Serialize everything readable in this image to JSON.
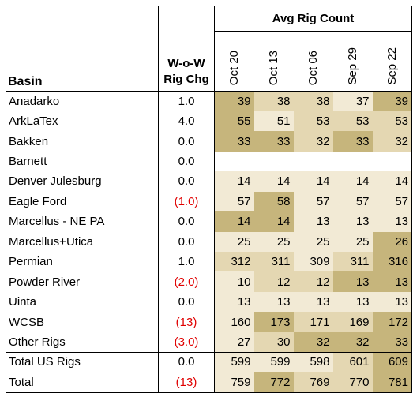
{
  "header": {
    "group_title": "Avg Rig Count",
    "basin": "Basin",
    "wow_line1": "W-o-W",
    "wow_line2": "Rig Chg",
    "months": [
      "Oct 20",
      "Oct 13",
      "Oct 06",
      "Sep 29",
      "Sep 22"
    ]
  },
  "rows": [
    {
      "basin": "Anadarko",
      "wow": "1.0",
      "neg": false,
      "values": [
        "39",
        "38",
        "38",
        "37",
        "39"
      ],
      "shade": [
        4,
        3,
        3,
        2,
        4
      ]
    },
    {
      "basin": "ArkLaTex",
      "wow": "4.0",
      "neg": false,
      "values": [
        "55",
        "51",
        "53",
        "53",
        "53"
      ],
      "shade": [
        4,
        2,
        3,
        3,
        3
      ]
    },
    {
      "basin": "Bakken",
      "wow": "0.0",
      "neg": false,
      "values": [
        "33",
        "33",
        "32",
        "33",
        "32"
      ],
      "shade": [
        4,
        4,
        3,
        4,
        3
      ]
    },
    {
      "basin": "Barnett",
      "wow": "0.0",
      "neg": false,
      "values": [
        "",
        "",
        "",
        "",
        ""
      ],
      "shade": [
        1,
        1,
        1,
        1,
        1
      ]
    },
    {
      "basin": "Denver Julesburg",
      "wow": "0.0",
      "neg": false,
      "values": [
        "14",
        "14",
        "14",
        "14",
        "14"
      ],
      "shade": [
        2,
        2,
        2,
        2,
        2
      ]
    },
    {
      "basin": "Eagle Ford",
      "wow": "(1.0)",
      "neg": true,
      "values": [
        "57",
        "58",
        "57",
        "57",
        "57"
      ],
      "shade": [
        2,
        4,
        2,
        2,
        2
      ]
    },
    {
      "basin": "Marcellus - NE PA",
      "wow": "0.0",
      "neg": false,
      "values": [
        "14",
        "14",
        "13",
        "13",
        "13"
      ],
      "shade": [
        4,
        4,
        2,
        2,
        2
      ]
    },
    {
      "basin": "Marcellus+Utica",
      "wow": "0.0",
      "neg": false,
      "values": [
        "25",
        "25",
        "25",
        "25",
        "26"
      ],
      "shade": [
        2,
        2,
        2,
        2,
        4
      ]
    },
    {
      "basin": "Permian",
      "wow": "1.0",
      "neg": false,
      "values": [
        "312",
        "311",
        "309",
        "311",
        "316"
      ],
      "shade": [
        3,
        3,
        2,
        3,
        4
      ]
    },
    {
      "basin": "Powder River",
      "wow": "(2.0)",
      "neg": true,
      "values": [
        "10",
        "12",
        "12",
        "13",
        "13"
      ],
      "shade": [
        2,
        3,
        3,
        4,
        4
      ]
    },
    {
      "basin": "Uinta",
      "wow": "0.0",
      "neg": false,
      "values": [
        "13",
        "13",
        "13",
        "13",
        "13"
      ],
      "shade": [
        2,
        2,
        2,
        2,
        2
      ]
    },
    {
      "basin": "WCSB",
      "wow": "(13)",
      "neg": true,
      "values": [
        "160",
        "173",
        "171",
        "169",
        "172"
      ],
      "shade": [
        2,
        4,
        3,
        3,
        4
      ]
    },
    {
      "basin": "Other Rigs",
      "wow": "(3.0)",
      "neg": true,
      "values": [
        "27",
        "30",
        "32",
        "32",
        "33"
      ],
      "shade": [
        2,
        3,
        4,
        4,
        4
      ]
    },
    {
      "basin": "Total US Rigs",
      "wow": "0.0",
      "neg": false,
      "values": [
        "599",
        "599",
        "598",
        "601",
        "609"
      ],
      "shade": [
        2,
        2,
        2,
        3,
        4
      ]
    },
    {
      "basin": "Total",
      "wow": "(13)",
      "neg": true,
      "values": [
        "759",
        "772",
        "769",
        "770",
        "781"
      ],
      "shade": [
        2,
        4,
        3,
        3,
        4
      ]
    }
  ]
}
